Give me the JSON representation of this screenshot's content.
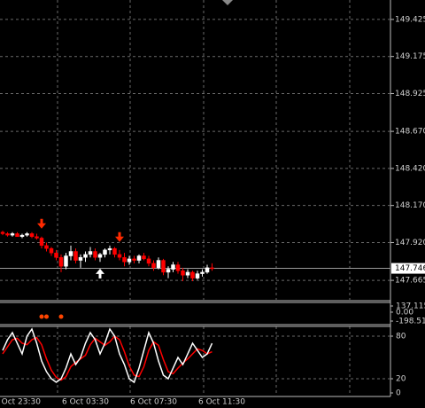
{
  "chart_data": {
    "type": "candlestick",
    "categories": [
      null,
      null,
      null,
      "6 Oct 23:30",
      null,
      null,
      null,
      null,
      null,
      null,
      null,
      null,
      null,
      null,
      null,
      null,
      null,
      "6 Oct 03:30",
      null,
      null,
      null,
      null,
      null,
      null,
      null,
      null,
      null,
      null,
      null,
      null,
      null,
      "6 Oct 07:30",
      null,
      null,
      null,
      null,
      null,
      null,
      null,
      null,
      null,
      null,
      null,
      null,
      null,
      "6 Oct 11:30",
      null,
      null
    ],
    "open": [
      147.99,
      147.98,
      147.97,
      147.98,
      147.96,
      147.97,
      147.98,
      147.96,
      147.95,
      147.9,
      147.88,
      147.85,
      147.82,
      147.76,
      147.83,
      147.86,
      147.8,
      147.82,
      147.84,
      147.86,
      147.82,
      147.84,
      147.87,
      147.88,
      147.84,
      147.82,
      147.79,
      147.81,
      147.8,
      147.83,
      147.81,
      147.78,
      147.75,
      147.8,
      147.72,
      147.74,
      147.77,
      147.73,
      147.7,
      147.72,
      147.68,
      147.71,
      147.72,
      147.75,
      null,
      null,
      null,
      null
    ],
    "high": [
      148.0,
      147.99,
      147.99,
      147.99,
      147.98,
      147.99,
      147.99,
      147.98,
      147.96,
      147.92,
      147.89,
      147.87,
      147.84,
      147.85,
      147.9,
      147.88,
      147.84,
      147.86,
      147.89,
      147.88,
      147.85,
      147.88,
      147.9,
      147.89,
      147.87,
      147.85,
      147.83,
      147.83,
      147.84,
      147.85,
      147.83,
      147.8,
      147.82,
      147.81,
      147.76,
      147.79,
      147.79,
      147.75,
      147.74,
      147.73,
      147.73,
      147.74,
      147.77,
      147.78,
      null,
      null,
      null,
      null
    ],
    "low": [
      147.97,
      147.96,
      147.96,
      147.96,
      147.95,
      147.96,
      147.95,
      147.94,
      147.88,
      147.86,
      147.83,
      147.8,
      147.72,
      147.74,
      147.8,
      147.78,
      147.75,
      147.79,
      147.82,
      147.8,
      147.79,
      147.82,
      147.84,
      147.82,
      147.8,
      147.76,
      147.77,
      147.78,
      147.78,
      147.8,
      147.76,
      147.73,
      147.74,
      147.7,
      147.68,
      147.72,
      147.71,
      147.66,
      147.68,
      147.66,
      147.67,
      147.69,
      147.71,
      147.73,
      null,
      null,
      null,
      null
    ],
    "close": [
      147.98,
      147.97,
      147.98,
      147.96,
      147.97,
      147.98,
      147.96,
      147.95,
      147.9,
      147.88,
      147.85,
      147.82,
      147.76,
      147.83,
      147.86,
      147.8,
      147.82,
      147.84,
      147.86,
      147.82,
      147.84,
      147.87,
      147.88,
      147.84,
      147.82,
      147.79,
      147.81,
      147.8,
      147.83,
      147.81,
      147.78,
      147.75,
      147.8,
      147.72,
      147.74,
      147.77,
      147.73,
      147.7,
      147.72,
      147.68,
      147.71,
      147.72,
      147.75,
      147.746,
      null,
      null,
      null,
      null
    ],
    "bull_color": "#ffffff",
    "bear_color": "#ff0000",
    "ylim": [
      147.534,
      149.556
    ],
    "yticks": [
      149.425,
      149.175,
      148.925,
      {
        "value": 148.67,
        "label": "148.670"
      },
      {
        "value": 148.42,
        "label": "148.420"
      },
      {
        "value": 148.17,
        "label": "148.170"
      },
      {
        "value": 147.92,
        "label": "147.920"
      },
      147.665
    ],
    "last_price": 147.746,
    "grid": true,
    "down_arrows": [
      null,
      null,
      null,
      null,
      null,
      null,
      null,
      null,
      148.02,
      null,
      null,
      null,
      null,
      null,
      null,
      null,
      null,
      null,
      null,
      null,
      null,
      null,
      null,
      null,
      147.93,
      null,
      null,
      null,
      null,
      null,
      null,
      null,
      null,
      null,
      null,
      null,
      null,
      null,
      null,
      null,
      null,
      null,
      null,
      null,
      null,
      null,
      null,
      null
    ],
    "up_arrows": [
      null,
      null,
      null,
      null,
      null,
      null,
      null,
      null,
      null,
      null,
      null,
      null,
      null,
      null,
      null,
      null,
      null,
      null,
      null,
      null,
      147.75,
      null,
      null,
      null,
      null,
      null,
      null,
      null,
      null,
      null,
      null,
      null,
      null,
      null,
      null,
      null,
      null,
      null,
      null,
      null,
      null,
      null,
      null,
      null,
      null,
      null,
      null,
      null
    ],
    "down_arrow_color": "#ff2a00",
    "up_arrow_color": "#ffffff",
    "indicator": {
      "type": "scatter",
      "ylim": [
        -198.51,
        137.115
      ],
      "yticks": [
        137.115,
        {
          "value": 0,
          "label": "0.00"
        },
        -198.51
      ],
      "color": "#ff4500",
      "values": [
        null,
        null,
        null,
        null,
        null,
        null,
        null,
        null,
        -99,
        -99,
        null,
        null,
        -99,
        null,
        null,
        null,
        null,
        null,
        null,
        null,
        null,
        null,
        null,
        null,
        null,
        null,
        null,
        null,
        null,
        null,
        null,
        null,
        null,
        null,
        null,
        null,
        null,
        null,
        null,
        null,
        null,
        null,
        null,
        null,
        null,
        null,
        null,
        null
      ]
    },
    "oscillator": {
      "type": "line",
      "ylim": [
        0,
        100
      ],
      "yticks": [
        80,
        20,
        0
      ],
      "series": [
        {
          "color": "#ffffff",
          "values": [
            60,
            75,
            85,
            70,
            55,
            80,
            90,
            70,
            45,
            30,
            20,
            15,
            20,
            35,
            55,
            40,
            50,
            70,
            85,
            75,
            55,
            70,
            90,
            80,
            55,
            40,
            20,
            15,
            35,
            60,
            85,
            70,
            45,
            25,
            20,
            35,
            50,
            40,
            55,
            70,
            60,
            50,
            55,
            70,
            null,
            null,
            null,
            null
          ]
        },
        {
          "color": "#ff0000",
          "values": [
            55,
            65,
            75,
            77,
            70,
            68,
            75,
            78,
            68,
            48,
            32,
            22,
            18,
            23,
            37,
            43,
            48,
            53,
            68,
            77,
            72,
            67,
            72,
            80,
            75,
            58,
            38,
            25,
            23,
            37,
            60,
            72,
            67,
            47,
            30,
            27,
            35,
            42,
            48,
            55,
            62,
            60,
            55,
            58,
            null,
            null,
            null,
            null
          ]
        }
      ]
    }
  }
}
